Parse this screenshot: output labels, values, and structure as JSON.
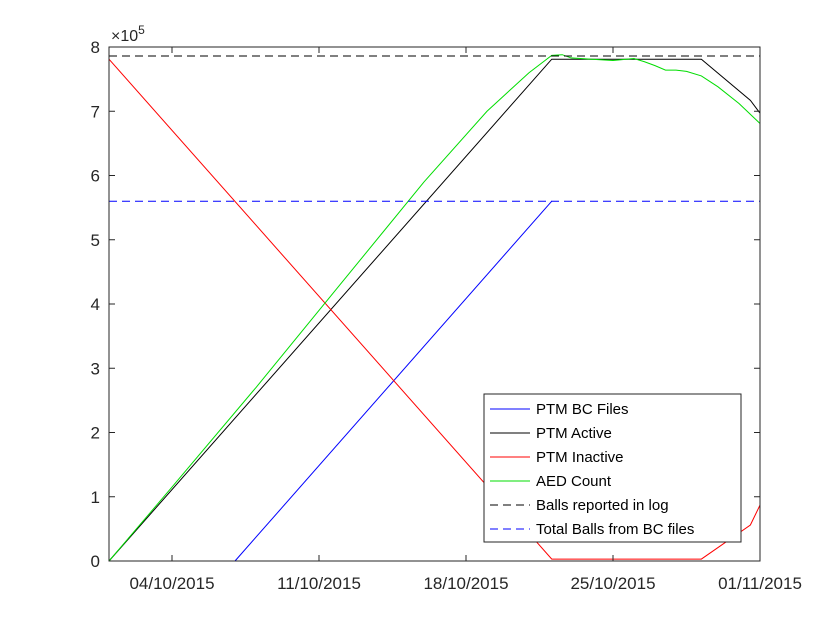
{
  "chart_data": {
    "type": "line",
    "title": "",
    "xlabel": "",
    "ylabel": "",
    "x_domain": [
      "2015-10-01",
      "2015-11-01"
    ],
    "xlim": [
      "2015-10-01",
      "2015-11-01"
    ],
    "ylim": [
      0,
      800000
    ],
    "y_exponent_label": "×10",
    "y_exponent_power": "5",
    "y_ticks": [
      {
        "value": 0,
        "label": "0"
      },
      {
        "value": 100000,
        "label": "1"
      },
      {
        "value": 200000,
        "label": "2"
      },
      {
        "value": 300000,
        "label": "3"
      },
      {
        "value": 400000,
        "label": "4"
      },
      {
        "value": 500000,
        "label": "5"
      },
      {
        "value": 600000,
        "label": "6"
      },
      {
        "value": 700000,
        "label": "7"
      },
      {
        "value": 800000,
        "label": "8"
      }
    ],
    "x_ticks": [
      {
        "value": "2015-10-04",
        "label": "04/10/2015"
      },
      {
        "value": "2015-10-11",
        "label": "11/10/2015"
      },
      {
        "value": "2015-10-18",
        "label": "18/10/2015"
      },
      {
        "value": "2015-10-25",
        "label": "25/10/2015"
      },
      {
        "value": "2015-11-01",
        "label": "01/11/2015"
      }
    ],
    "grid": false,
    "legend_position": "bottom-right",
    "series": [
      {
        "name": "PTM BC Files",
        "color": "#0000ff",
        "dash": "solid",
        "points": [
          [
            "2015-10-07 00:00",
            0
          ],
          [
            "2015-10-22 02:00",
            560000
          ]
        ]
      },
      {
        "name": "PTM Active",
        "color": "#000000",
        "dash": "solid",
        "points": [
          [
            "2015-10-01 00:00",
            0
          ],
          [
            "2015-10-22 02:00",
            781000
          ],
          [
            "2015-10-29 05:00",
            781000
          ],
          [
            "2015-10-31 13:00",
            717000
          ],
          [
            "2015-11-01 00:00",
            697000
          ]
        ]
      },
      {
        "name": "PTM Inactive",
        "color": "#ff0000",
        "dash": "solid",
        "points": [
          [
            "2015-10-01 00:00",
            781000
          ],
          [
            "2015-10-22 02:00",
            3000
          ],
          [
            "2015-10-29 05:00",
            3000
          ],
          [
            "2015-10-31 13:00",
            56000
          ],
          [
            "2015-11-01 00:00",
            87000
          ]
        ]
      },
      {
        "name": "AED Count",
        "color": "#00dd00",
        "dash": "solid",
        "points": [
          [
            "2015-10-01 00:00",
            0
          ],
          [
            "2015-10-04 00:00",
            115000
          ],
          [
            "2015-10-08 00:00",
            270000
          ],
          [
            "2015-10-12 00:00",
            430000
          ],
          [
            "2015-10-16 00:00",
            590000
          ],
          [
            "2015-10-19 00:00",
            700000
          ],
          [
            "2015-10-21 00:00",
            760000
          ],
          [
            "2015-10-22 02:00",
            787000
          ],
          [
            "2015-10-22 14:00",
            788000
          ],
          [
            "2015-10-23 00:00",
            783000
          ],
          [
            "2015-10-24 00:00",
            781000
          ],
          [
            "2015-10-25 00:00",
            779000
          ],
          [
            "2015-10-26 00:00",
            782000
          ],
          [
            "2015-10-26 12:00",
            777000
          ],
          [
            "2015-10-27 00:00",
            771000
          ],
          [
            "2015-10-27 12:00",
            764000
          ],
          [
            "2015-10-28 00:00",
            764000
          ],
          [
            "2015-10-28 12:00",
            762000
          ],
          [
            "2015-10-29 05:00",
            755000
          ],
          [
            "2015-10-30 00:00",
            738000
          ],
          [
            "2015-10-31 00:00",
            712000
          ],
          [
            "2015-11-01 00:00",
            681000
          ]
        ]
      },
      {
        "name": "Balls reported in log",
        "color": "#000000",
        "dash": "dashed",
        "points": [
          [
            "2015-10-01 00:00",
            786000
          ],
          [
            "2015-11-01 00:00",
            786000
          ]
        ]
      },
      {
        "name": "Total Balls from BC files",
        "color": "#0000ff",
        "dash": "dashed",
        "points": [
          [
            "2015-10-01 00:00",
            560000
          ],
          [
            "2015-11-01 00:00",
            560000
          ]
        ]
      }
    ]
  }
}
